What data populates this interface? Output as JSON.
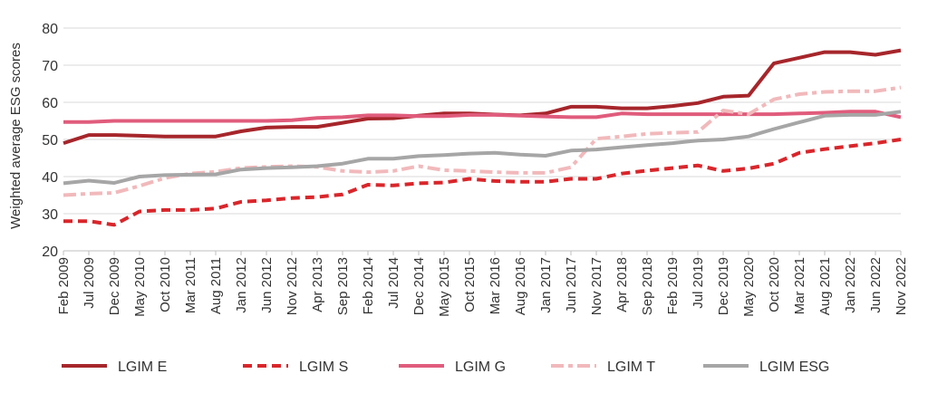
{
  "chart_data": {
    "type": "line",
    "ylabel": "Weighted average ESG scores",
    "xlabel": "",
    "ylim": [
      20,
      80
    ],
    "yticks": [
      20,
      30,
      40,
      50,
      60,
      70,
      80
    ],
    "grid": true,
    "legend_position": "bottom",
    "categories": [
      "Feb 2009",
      "Jul 2009",
      "Dec 2009",
      "May 2010",
      "Oct 2010",
      "Mar 2011",
      "Aug 2011",
      "Jan 2012",
      "Jun 2012",
      "Nov 2012",
      "Apr 2013",
      "Sep 2013",
      "Feb 2014",
      "Jul 2014",
      "Dec 2014",
      "May 2015",
      "Oct 2015",
      "Mar 2016",
      "Aug 2016",
      "Jan 2017",
      "Jun 2017",
      "Nov 2017",
      "Apr 2018",
      "Sep 2018",
      "Feb 2019",
      "Jul 2019",
      "Dec 2019",
      "May 2020",
      "Oct 2020",
      "Mar 2021",
      "Aug 2021",
      "Jan 2022",
      "Jun 2022",
      "Nov 2022"
    ],
    "series": [
      {
        "name": "LGIM E",
        "color": "#a6262b",
        "dash": "solid",
        "values": [
          49,
          51.2,
          51.2,
          51,
          50.8,
          50.8,
          50.8,
          52.2,
          53.2,
          53.4,
          53.4,
          54.5,
          55.6,
          55.7,
          56.4,
          57,
          57,
          56.7,
          56.5,
          57,
          58.8,
          58.8,
          58.4,
          58.4,
          59,
          59.8,
          61.5,
          61.8,
          70.5,
          72,
          73.5,
          73.5,
          72.8,
          74
        ]
      },
      {
        "name": "LGIM S",
        "color": "#d9262b",
        "dash": "dashed",
        "values": [
          28,
          28,
          27,
          30.6,
          31,
          31,
          31.4,
          33.2,
          33.6,
          34.2,
          34.5,
          35.2,
          37.8,
          37.6,
          38.2,
          38.4,
          39.4,
          38.8,
          38.6,
          38.6,
          39.4,
          39.4,
          40.8,
          41.6,
          42.3,
          43,
          41.5,
          42.2,
          43.5,
          46.4,
          47.4,
          48.2,
          49,
          50
        ]
      },
      {
        "name": "LGIM G",
        "color": "#e05c7c",
        "dash": "solid",
        "values": [
          54.7,
          54.7,
          55,
          55,
          55,
          55,
          55,
          55,
          55,
          55.2,
          55.8,
          56,
          56.5,
          56.5,
          56.3,
          56.3,
          56.6,
          56.6,
          56.4,
          56.2,
          56,
          56,
          57,
          56.8,
          56.8,
          56.8,
          56.8,
          56.8,
          56.8,
          57,
          57.2,
          57.5,
          57.5,
          56
        ]
      },
      {
        "name": "LGIM T",
        "color": "#f1b9bb",
        "dash": "dash-dot",
        "values": [
          35,
          35.4,
          35.6,
          37.5,
          39.6,
          40.8,
          41.3,
          42.3,
          42.6,
          42.8,
          42.6,
          41.5,
          41.2,
          41.5,
          42.8,
          41.7,
          41.5,
          41.2,
          41,
          41,
          42.5,
          50.2,
          50.8,
          51.5,
          51.8,
          52,
          57.8,
          56.8,
          60.8,
          62.2,
          62.8,
          63,
          63,
          64
        ]
      },
      {
        "name": "LGIM ESG",
        "color": "#a6a6a6",
        "dash": "solid",
        "values": [
          38.2,
          38.9,
          38.3,
          40,
          40.4,
          40.5,
          40.6,
          41.9,
          42.3,
          42.5,
          42.8,
          43.5,
          44.8,
          44.8,
          45.5,
          45.8,
          46.2,
          46.4,
          45.9,
          45.6,
          47,
          47.3,
          47.9,
          48.5,
          49,
          49.7,
          50,
          50.8,
          52.8,
          54.6,
          56.4,
          56.6,
          56.6,
          57.5
        ]
      }
    ]
  }
}
